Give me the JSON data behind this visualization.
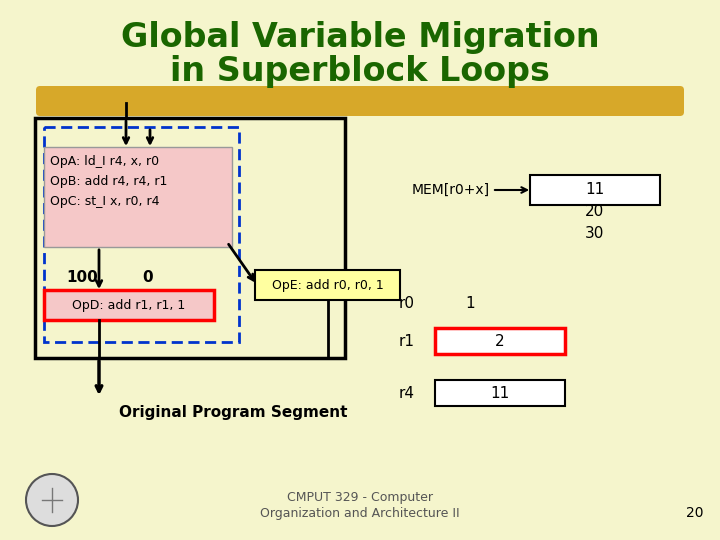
{
  "title_line1": "Global Variable Migration",
  "title_line2": "in Superblock Loops",
  "title_color": "#1a6600",
  "bg_color": "#f5f5cc",
  "highlight_color": "#f5c8c8",
  "yellow_stripe_color": "#d4a017",
  "ops_text": "OpA: ld_I r4, x, r0\nOpB: add r4, r4, r1\nOpC: st_I x, r0, r4",
  "opd_text": "OpD: add r1, r1, 1",
  "ope_text": "OpE: add r0, r0, 1",
  "mem_label": "MEM[r0+x]",
  "mem_values": [
    "11",
    "20",
    "30"
  ],
  "r0_label": "r0",
  "r0_val": "1",
  "r1_label": "r1",
  "r1_val": "2",
  "r4_label": "r4",
  "r4_val": "11",
  "label_100": "100",
  "label_0": "0",
  "orig_label": "Original Program Segment",
  "footer_line1": "CMPUT 329 - Computer",
  "footer_line2": "Organization and Architecture II",
  "footer_page": "20"
}
